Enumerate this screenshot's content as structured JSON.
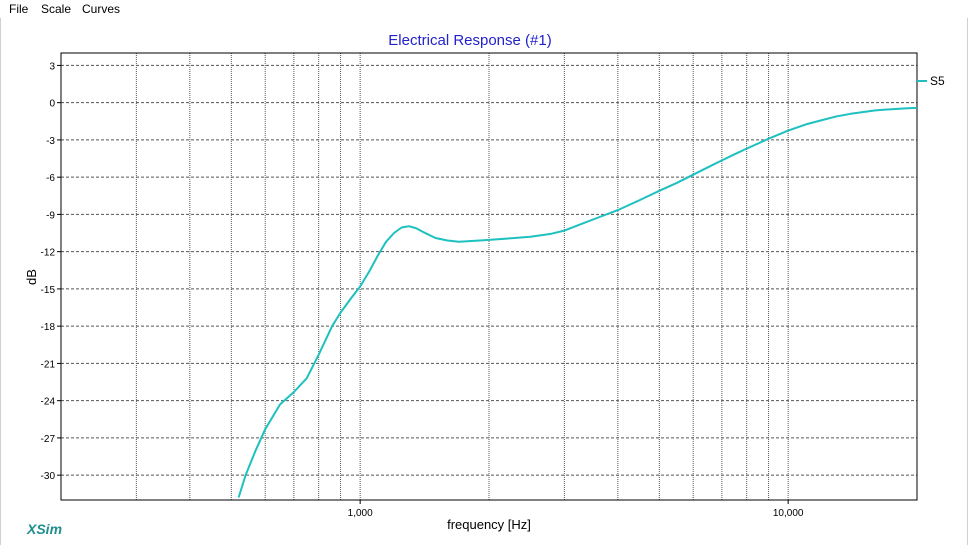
{
  "menu": {
    "items": [
      "File",
      "Scale",
      "Curves"
    ]
  },
  "brand": "XSim",
  "colors": {
    "curve": "#1ec0c0",
    "title": "#2222cc",
    "grid": "#555555"
  },
  "chart_data": {
    "type": "line",
    "title": "Electrical Response (#1)",
    "xlabel": "frequency [Hz]",
    "ylabel": "dB",
    "xscale": "log",
    "xlim": [
      200,
      20000
    ],
    "ylim": [
      -32,
      4
    ],
    "xtick_labels": [
      {
        "value": 1000,
        "label": "1,000"
      },
      {
        "value": 10000,
        "label": "10,000"
      }
    ],
    "ytick_labels": [
      {
        "value": 3,
        "label": "3"
      },
      {
        "value": 0,
        "label": "0"
      },
      {
        "value": -3,
        "label": "-3"
      },
      {
        "value": -6,
        "label": "-6"
      },
      {
        "value": -9,
        "label": "-9"
      },
      {
        "value": -12,
        "label": "-12"
      },
      {
        "value": -15,
        "label": "-15"
      },
      {
        "value": -18,
        "label": "-18"
      },
      {
        "value": -21,
        "label": "-21"
      },
      {
        "value": -24,
        "label": "-24"
      },
      {
        "value": -27,
        "label": "-27"
      },
      {
        "value": -30,
        "label": "-30"
      }
    ],
    "grid": true,
    "legend": "right",
    "series": [
      {
        "name": "S5",
        "x": [
          520,
          540,
          570,
          600,
          650,
          700,
          750,
          800,
          860,
          900,
          950,
          1000,
          1050,
          1100,
          1150,
          1200,
          1250,
          1300,
          1350,
          1400,
          1500,
          1600,
          1700,
          1800,
          1900,
          2000,
          2200,
          2500,
          2800,
          3000,
          3300,
          3600,
          4000,
          4500,
          5000,
          5500,
          6000,
          6500,
          7000,
          7500,
          8000,
          9000,
          10000,
          11000,
          12000,
          13000,
          14000,
          15000,
          16000,
          17000,
          18000,
          19000,
          20000
        ],
        "y": [
          -31.8,
          -30.0,
          -28.0,
          -26.3,
          -24.3,
          -23.3,
          -22.2,
          -20.3,
          -18.0,
          -16.9,
          -15.8,
          -14.8,
          -13.6,
          -12.3,
          -11.2,
          -10.5,
          -10.05,
          -9.95,
          -10.1,
          -10.4,
          -10.9,
          -11.1,
          -11.2,
          -11.15,
          -11.1,
          -11.05,
          -10.95,
          -10.8,
          -10.55,
          -10.3,
          -9.75,
          -9.25,
          -8.65,
          -7.85,
          -7.1,
          -6.45,
          -5.8,
          -5.2,
          -4.65,
          -4.15,
          -3.7,
          -2.9,
          -2.25,
          -1.75,
          -1.4,
          -1.1,
          -0.9,
          -0.75,
          -0.62,
          -0.55,
          -0.5,
          -0.45,
          -0.42
        ]
      }
    ]
  }
}
